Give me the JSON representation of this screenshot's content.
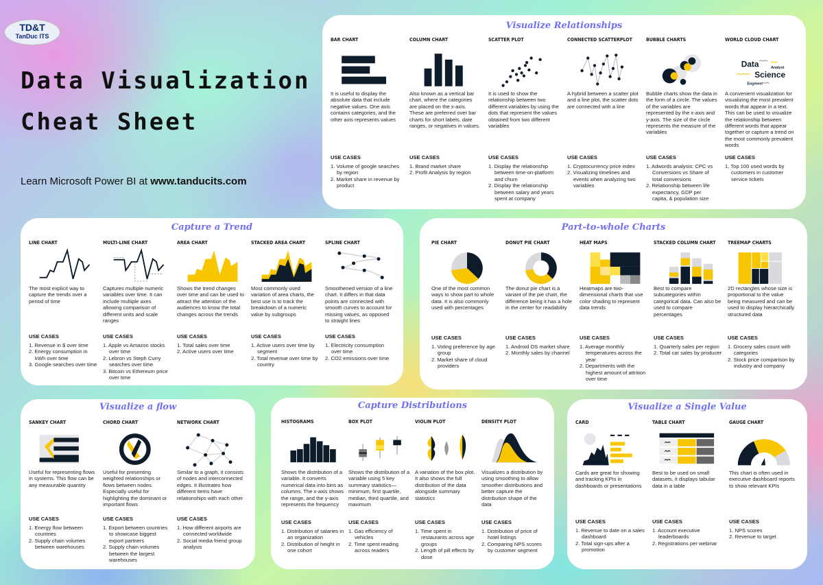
{
  "logo": {
    "line1": "TD&T",
    "line2": "TanDuc ITS"
  },
  "header": {
    "title_line1": "Data Visualization",
    "title_line2": "Cheat Sheet",
    "learn_prefix": "Learn Microsoft Power BI at ",
    "learn_link": "www.tanducits.com"
  },
  "colors": {
    "navy": "#0d1b2a",
    "yellow": "#f7c600",
    "gray": "#d9d9de",
    "section_title": "#7070f0"
  },
  "use_cases_label": "USE CASES",
  "sections": [
    {
      "title": "Visualize Relationships",
      "charts": [
        {
          "label": "Bar Chart",
          "icon": "bar-chart-icon",
          "desc": "It is useful to display the absolute data that include negative values. One axis contains categories, and the other axis represents values",
          "uses": [
            "Volume of google searches by region",
            "Market share in revenue by product"
          ]
        },
        {
          "label": "Column Chart",
          "icon": "column-chart-icon",
          "desc": "Also known as a vertical bar chart, where the categories are placed on the x-axis. These are preferred over bar charts for short labels, date ranges, or negatives in values.",
          "uses": [
            "Brand market share",
            "Profit Analysis by region"
          ]
        },
        {
          "label": "Scatter Plot",
          "icon": "scatter-plot-icon",
          "desc": "It is used to show the relationship between two different variables by using the dots that represent the values obtained from two different variables",
          "uses": [
            "Display the relationship between time-on-platform and churn",
            "Display the relationship between salary and years spent at company"
          ]
        },
        {
          "label": "Connected Scatterplot",
          "icon": "connected-scatterplot-icon",
          "desc": "A hybrid between a scatter plot and a line plot, the scatter dots are connected with a line",
          "uses": [
            "Cryptocurrency price index",
            "Visualizing timelines and events when analyzing two variables"
          ]
        },
        {
          "label": "Bubble Charts",
          "icon": "bubble-chart-icon",
          "desc": "Bubble charts show the data in the form of a circle. The values of the variables are represented by the x-axis and y-axis. The size of the circle represents the measure of the variables",
          "uses": [
            "Adwords analysis: CPC vs Conversions vs Share of total conversions",
            "Relationship between life expectancy, GDP per capita, & population size"
          ]
        },
        {
          "label": "World Cloud Chart",
          "icon": "word-cloud-icon",
          "words": [
            "Data",
            "Analyst",
            "Science",
            "Engineer"
          ],
          "desc": "A convenient visualization for visualizing the most prevalent words that appear in a text. This can be used to visualize the relationship between different words that appear together or capture a trend on the most commonly prevalent words",
          "uses": [
            "Top 100 used words by customers in customer service tickets"
          ]
        }
      ]
    },
    {
      "title": "Capture a Trend",
      "charts": [
        {
          "label": "Line Chart",
          "icon": "line-chart-icon",
          "desc": "The most explicit way to capture the trends over a period of time",
          "uses": [
            "Revenue in $ over time",
            "Energy consumption in kWh over time",
            "Google searches over time"
          ]
        },
        {
          "label": "Multi-line Chart",
          "icon": "multi-line-chart-icon",
          "desc": "Captures multiple numeric variables over time. It can include multiple axes allowing comparison of different units and scale ranges",
          "uses": [
            "Apple vs Amazon stocks over time",
            "Lebron vs Steph Curry searches over time",
            "Bitcoin vs Ethereum price over time"
          ]
        },
        {
          "label": "Area Chart",
          "icon": "area-chart-icon",
          "desc": "Shows the trend changes over time and can be used to attract the attention of the audiences to know the total changes across the trends",
          "uses": [
            "Total sales over time",
            "Active users over time"
          ]
        },
        {
          "label": "Stacked Area Chart",
          "icon": "stacked-area-chart-icon",
          "desc": "Most commonly used variation of area charts, the best use is to track the breakdown of a numeric value by subgroups",
          "uses": [
            "Active users over time by segment",
            "Total revenue over time by country"
          ]
        },
        {
          "label": "Spline Chart",
          "icon": "spline-chart-icon",
          "desc": "Smoothened version of a line chart. It differs in that data points are connected with smooth curves to account for missing values, as opposed to straight lines",
          "uses": [
            "Electricity consumption over time",
            "CO2 emissions over time"
          ]
        }
      ]
    },
    {
      "title": "Part-to-whole Charts",
      "charts": [
        {
          "label": "Pie Chart",
          "icon": "pie-chart-icon",
          "desc": "One of the most common ways to show part to whole data. It is also commonly used with percentages",
          "uses": [
            "Voting preference by age group",
            "Market share of cloud providers"
          ]
        },
        {
          "label": "Donut Pie Chart",
          "icon": "donut-chart-icon",
          "desc": "The donut pie chart is a variant of the pie chart, the difference being it has a hole in the center for readability",
          "uses": [
            "Android OS market share",
            "Monthly sales by channel"
          ]
        },
        {
          "label": "Heat Maps",
          "icon": "heat-map-icon",
          "desc": "Heatmaps are two-dimensional charts that use color shading to represent data trends",
          "uses": [
            "Average monthly temperatures across the year",
            "Departments with the highest amount of attrition over time"
          ]
        },
        {
          "label": "Stacked Column Chart",
          "icon": "stacked-column-chart-icon",
          "desc": "Best to compare subcategories within categorical data. Can also be used to compare percentages",
          "uses": [
            "Quarterly sales per region",
            "Total car sales by producer"
          ]
        },
        {
          "label": "Treemap Charts",
          "icon": "treemap-icon",
          "desc": "2D rectangles whose size is proportional to the value being measured and can be used to display hierarchically structured data",
          "uses": [
            "Grocery sales count with categories",
            "Stock price comparison by industry and company"
          ]
        }
      ]
    },
    {
      "title": "Visualize a flow",
      "charts": [
        {
          "label": "Sankey Chart",
          "icon": "sankey-chart-icon",
          "desc": "Useful for representing flows in systems. This flow can be any measurable quantity",
          "uses": [
            "Energy flow between countries",
            "Supply chain volumes between warehouses"
          ]
        },
        {
          "label": "Chord Chart",
          "icon": "chord-chart-icon",
          "desc": "Useful for presenting weighted relationships or flows between nodes. Especially useful for highlighting the dominant or important flows",
          "uses": [
            "Export between countries to showcase biggest export partners",
            "Supply chain volumes between the largest warehouses"
          ]
        },
        {
          "label": "Network Chart",
          "icon": "network-chart-icon",
          "desc": "Similar to a graph, it consists of nodes and interconnected edges. It illustrates how different items have relationships with each other",
          "uses": [
            "How different airports are connected worldwide",
            "Social media friend group analysis"
          ]
        }
      ]
    },
    {
      "title": "Capture Distributions",
      "charts": [
        {
          "label": "Histograms",
          "icon": "histogram-icon",
          "desc": "Shows the distribution of a variable. It converts numerical data into bins as columns. The x-axis shows the range, and the y-axis represents the frequency",
          "uses": [
            "Distribution of salaries in an organization",
            "Distribution of height in one cohort"
          ]
        },
        {
          "label": "Box Plot",
          "icon": "box-plot-icon",
          "desc": "Shows the distribution of a variable using 5 key summary statistics—minimum, first quartile, median, third quartile, and maximum",
          "uses": [
            "Gas efficiency of vehicles",
            "Time spent reading across readers"
          ]
        },
        {
          "label": "Violin Plot",
          "icon": "violin-plot-icon",
          "desc": "A variation of the box plot. It also shows the full distribution of the data alongside summary statistics",
          "uses": [
            "Time spent in restaurants across age groups",
            "Length of pill effects by dose"
          ]
        },
        {
          "label": "Density Plot",
          "icon": "density-plot-icon",
          "desc": "Visualizes a distribution by using smoothing to allow smoother distributions and better capture the distribution shape of the data",
          "uses": [
            "Distribution of price of hotel listings",
            "Comparing NPS scores by customer segment"
          ]
        }
      ]
    },
    {
      "title": "Visualize a Single Value",
      "charts": [
        {
          "label": "Card",
          "icon": "card-icon",
          "desc": "Cards are great for showing and tracking KPIs in dashboards or presentations",
          "uses": [
            "Revenue to date on a sales dashboard",
            "Total sign-ups after a promotion"
          ]
        },
        {
          "label": "Table Chart",
          "icon": "table-chart-icon",
          "desc": "Best to be used on small datasets, it displays tabular data in a table",
          "uses": [
            "Account executive leaderboards",
            "Registrations per webinar"
          ]
        },
        {
          "label": "Gauge Chart",
          "icon": "gauge-chart-icon",
          "desc": "This chart is often used in executive dashboard reports to show relevant KPIs",
          "uses": [
            "NPS scores",
            "Revenue to target"
          ]
        }
      ]
    }
  ]
}
